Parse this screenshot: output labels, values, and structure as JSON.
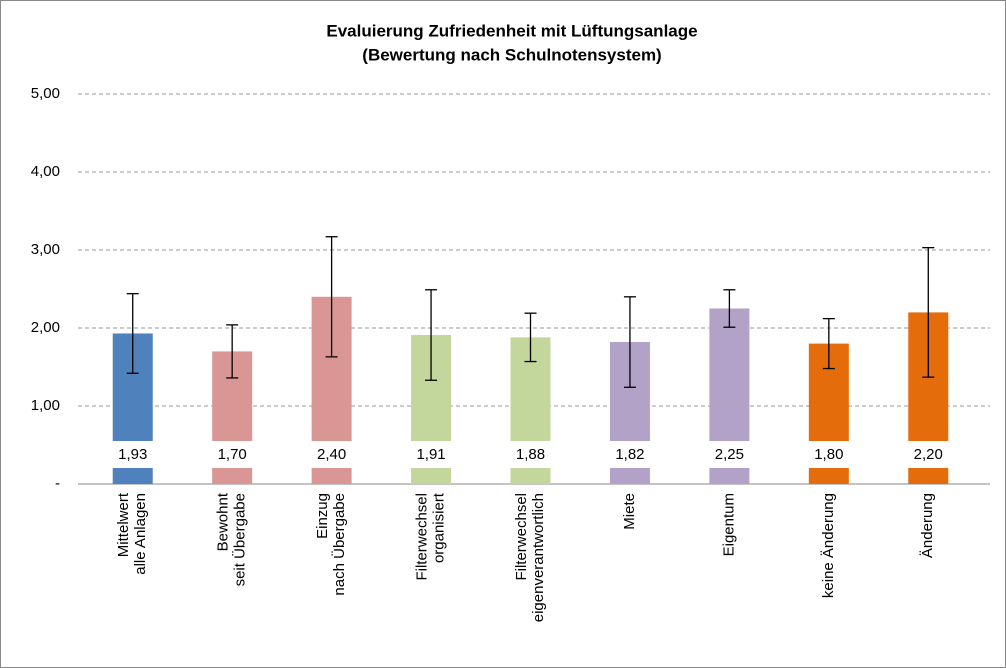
{
  "chart_data": {
    "type": "bar",
    "title": "Evaluierung Zufriedenheit mit Lüftungsanlage",
    "subtitle": "(Bewertung nach Schulnotensystem)",
    "categories": [
      [
        "Mittelwert",
        "alle Anlagen"
      ],
      [
        "Bewohnt",
        "seit Übergabe"
      ],
      [
        "Einzug",
        "nach Übergabe"
      ],
      [
        "Filterwechsel",
        "organisiert"
      ],
      [
        "Filterwechsel",
        "eigenverantwortlich"
      ],
      [
        "Miete"
      ],
      [
        "Eigentum"
      ],
      [
        "keine Änderung"
      ],
      [
        "Änderung"
      ]
    ],
    "values": [
      1.93,
      1.7,
      2.4,
      1.91,
      1.88,
      1.82,
      2.25,
      1.8,
      2.2
    ],
    "value_labels": [
      "1,93",
      "1,70",
      "2,40",
      "1,91",
      "1,88",
      "1,82",
      "2,25",
      "1,80",
      "2,20"
    ],
    "errors": [
      0.51,
      0.34,
      0.77,
      0.58,
      0.31,
      0.58,
      0.24,
      0.32,
      0.83
    ],
    "colors": [
      "#4f81bd",
      "#d99694",
      "#d99694",
      "#c3d69b",
      "#c3d69b",
      "#b3a2c7",
      "#b3a2c7",
      "#e46c0a",
      "#e46c0a"
    ],
    "ylim": [
      0,
      5
    ],
    "yticks": [
      {
        "value": 0,
        "label": "-"
      },
      {
        "value": 1,
        "label": "1,00"
      },
      {
        "value": 2,
        "label": "2,00"
      },
      {
        "value": 3,
        "label": "3,00"
      },
      {
        "value": 4,
        "label": "4,00"
      },
      {
        "value": 5,
        "label": "5,00"
      }
    ],
    "grid": true
  }
}
